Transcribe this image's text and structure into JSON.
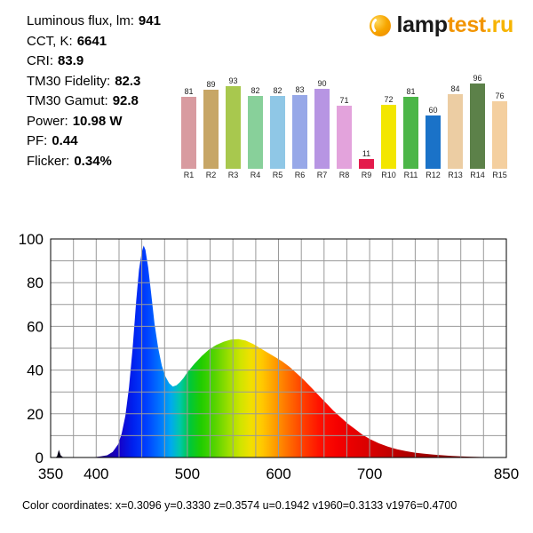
{
  "stats": {
    "lines": [
      {
        "label": "Luminous flux, lm:",
        "value": "941"
      },
      {
        "label": "CCT, K:",
        "value": "6641"
      },
      {
        "label": "CRI:",
        "value": "83.9"
      },
      {
        "label": "TM30 Fidelity:",
        "value": "82.3"
      },
      {
        "label": "TM30 Gamut:",
        "value": "92.8"
      },
      {
        "label": "Power:",
        "value": "10.98 W"
      },
      {
        "label": "PF:",
        "value": "0.44"
      },
      {
        "label": "Flicker:",
        "value": "0.34%"
      }
    ]
  },
  "logo": {
    "part1": "lamp",
    "part2": "test",
    "part3": ".ru",
    "colors": {
      "part1": "#1a1a1a",
      "part2": "#f29400",
      "part3": "#f6b400",
      "icon_main": "#f7a600",
      "icon_light": "#ffd95c"
    }
  },
  "chart_data": [
    {
      "type": "bar",
      "categories": [
        "R1",
        "R2",
        "R3",
        "R4",
        "R5",
        "R6",
        "R7",
        "R8",
        "R9",
        "R10",
        "R11",
        "R12",
        "R13",
        "R14",
        "R15"
      ],
      "values": [
        81,
        89,
        93,
        82,
        82,
        83,
        90,
        71,
        11,
        72,
        81,
        60,
        84,
        96,
        76
      ],
      "bar_colors": [
        "#d89ba0",
        "#c7a666",
        "#a8c84e",
        "#88d09a",
        "#8fc7e6",
        "#97a8e8",
        "#b795e3",
        "#e3a3dc",
        "#e41b4b",
        "#f3e600",
        "#4cb648",
        "#1a72c8",
        "#eccda3",
        "#5c8149",
        "#f4cf9f"
      ],
      "ylim": [
        0,
        100
      ],
      "grid": false,
      "legend": "none"
    },
    {
      "type": "area",
      "xlim": [
        350,
        850
      ],
      "ylim": [
        0,
        100
      ],
      "x_ticks": [
        350,
        400,
        500,
        600,
        700,
        850
      ],
      "y_ticks": [
        0,
        20,
        40,
        60,
        80,
        100
      ],
      "grid": {
        "x_step": 25,
        "y_step": 10,
        "on": true
      },
      "points": [
        [
          350,
          0
        ],
        [
          355,
          0
        ],
        [
          357,
          0.5
        ],
        [
          359,
          3.5
        ],
        [
          361,
          1
        ],
        [
          363,
          0.3
        ],
        [
          366,
          0
        ],
        [
          380,
          0
        ],
        [
          395,
          0
        ],
        [
          405,
          0.5
        ],
        [
          412,
          1
        ],
        [
          418,
          2.5
        ],
        [
          424,
          6
        ],
        [
          428,
          11
        ],
        [
          432,
          19
        ],
        [
          436,
          32
        ],
        [
          440,
          50
        ],
        [
          444,
          72
        ],
        [
          447,
          86
        ],
        [
          450,
          94
        ],
        [
          452,
          97
        ],
        [
          454,
          95
        ],
        [
          457,
          87
        ],
        [
          460,
          76
        ],
        [
          464,
          61
        ],
        [
          468,
          50
        ],
        [
          472,
          42
        ],
        [
          476,
          37
        ],
        [
          480,
          34
        ],
        [
          484,
          32.5
        ],
        [
          488,
          33
        ],
        [
          492,
          34.5
        ],
        [
          496,
          36.5
        ],
        [
          500,
          39
        ],
        [
          508,
          43
        ],
        [
          516,
          46.5
        ],
        [
          524,
          49.5
        ],
        [
          532,
          51.5
        ],
        [
          540,
          53
        ],
        [
          548,
          54
        ],
        [
          556,
          54.2
        ],
        [
          564,
          53.5
        ],
        [
          572,
          52
        ],
        [
          580,
          50
        ],
        [
          588,
          48
        ],
        [
          596,
          46
        ],
        [
          604,
          44
        ],
        [
          612,
          41.5
        ],
        [
          620,
          38.5
        ],
        [
          628,
          35.5
        ],
        [
          636,
          32
        ],
        [
          644,
          28.5
        ],
        [
          652,
          25
        ],
        [
          660,
          21.5
        ],
        [
          668,
          18.5
        ],
        [
          676,
          15.5
        ],
        [
          684,
          13
        ],
        [
          692,
          10.5
        ],
        [
          700,
          8.5
        ],
        [
          710,
          6.5
        ],
        [
          720,
          5
        ],
        [
          730,
          3.8
        ],
        [
          740,
          2.9
        ],
        [
          750,
          2.2
        ],
        [
          760,
          1.7
        ],
        [
          770,
          1.3
        ],
        [
          780,
          1
        ],
        [
          790,
          0.7
        ],
        [
          800,
          0.5
        ],
        [
          810,
          0.35
        ],
        [
          820,
          0.25
        ],
        [
          830,
          0.15
        ],
        [
          840,
          0.08
        ],
        [
          850,
          0
        ]
      ],
      "gradient_stops": [
        {
          "nm": 350,
          "color": "#000000"
        },
        {
          "nm": 400,
          "color": "#22007a"
        },
        {
          "nm": 425,
          "color": "#1500c8"
        },
        {
          "nm": 440,
          "color": "#0020ee"
        },
        {
          "nm": 455,
          "color": "#0040ff"
        },
        {
          "nm": 470,
          "color": "#0075ff"
        },
        {
          "nm": 482,
          "color": "#00aaee"
        },
        {
          "nm": 492,
          "color": "#00c8aa"
        },
        {
          "nm": 503,
          "color": "#00c838"
        },
        {
          "nm": 515,
          "color": "#20cc00"
        },
        {
          "nm": 530,
          "color": "#55d400"
        },
        {
          "nm": 545,
          "color": "#9ade00"
        },
        {
          "nm": 558,
          "color": "#cfe400"
        },
        {
          "nm": 570,
          "color": "#f2e000"
        },
        {
          "nm": 582,
          "color": "#ffc800"
        },
        {
          "nm": 595,
          "color": "#ffa000"
        },
        {
          "nm": 610,
          "color": "#ff7000"
        },
        {
          "nm": 625,
          "color": "#ff4400"
        },
        {
          "nm": 645,
          "color": "#ff1100"
        },
        {
          "nm": 665,
          "color": "#f50000"
        },
        {
          "nm": 700,
          "color": "#d80000"
        },
        {
          "nm": 750,
          "color": "#a80000"
        },
        {
          "nm": 800,
          "color": "#860000"
        },
        {
          "nm": 850,
          "color": "#6a0000"
        }
      ]
    }
  ],
  "footer": {
    "text": "Color coordinates:  x=0.3096 y=0.3330 z=0.3574 u=0.1942 v1960=0.3133 v1976=0.4700"
  }
}
